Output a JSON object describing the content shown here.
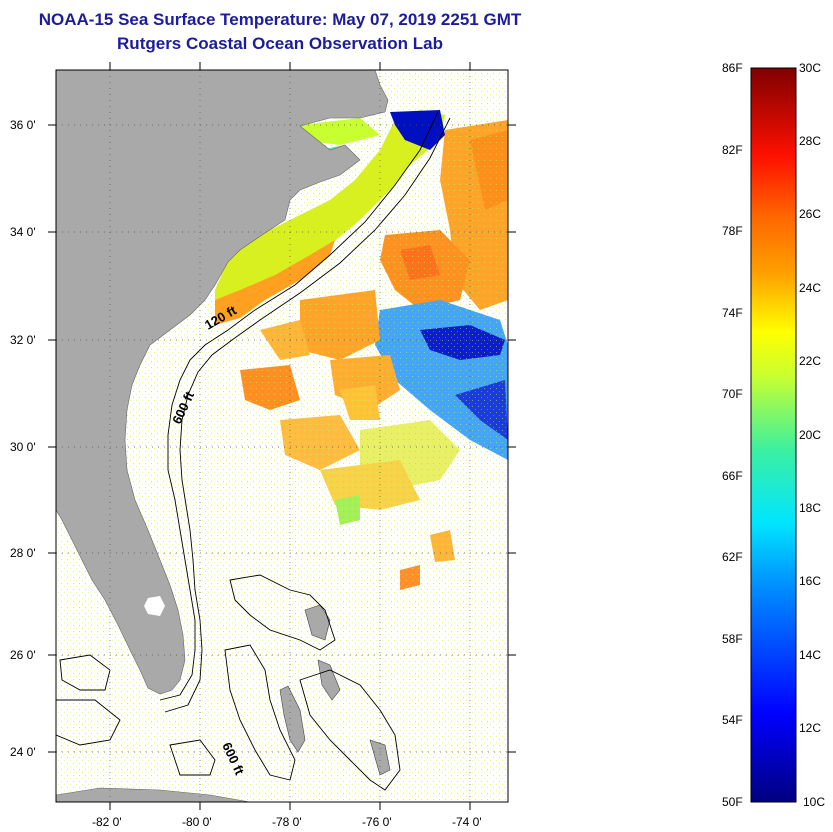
{
  "header": {
    "title": "NOAA-15 Sea Surface Temperature:  May 07, 2019 2251 GMT",
    "subtitle": "Rutgers Coastal Ocean Observation Lab"
  },
  "map": {
    "lon_labels": [
      "-82 0'",
      "-80 0'",
      "-78 0'",
      "-76 0'",
      "-74 0'"
    ],
    "lat_labels": [
      "36 0'",
      "34 0'",
      "32 0'",
      "30 0'",
      "28 0'",
      "26 0'",
      "24 0'"
    ],
    "contours": [
      "120 ft",
      "600 ft",
      "600 ft"
    ],
    "colors": {
      "land": "#a9a9a9",
      "ocean_nodata": "#ffffff"
    }
  },
  "colorbar": {
    "f_labels": [
      "86F",
      "82F",
      "78F",
      "74F",
      "70F",
      "66F",
      "62F",
      "58F",
      "54F",
      "50F"
    ],
    "c_labels": [
      "30C",
      "28C",
      "26C",
      "24C",
      "22C",
      "20C",
      "18C",
      "16C",
      "14C",
      "12C",
      "10C"
    ],
    "range_c": [
      10,
      30
    ],
    "range_f": [
      50,
      86
    ]
  }
}
